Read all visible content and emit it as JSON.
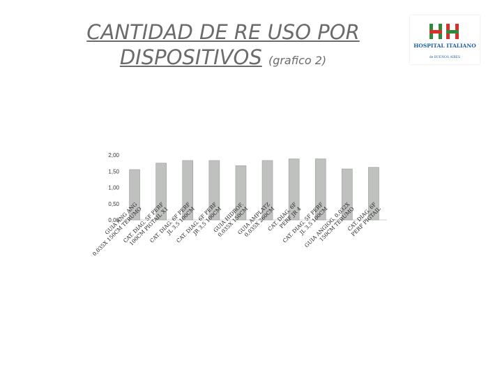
{
  "header": {
    "title_main": "CANTIDAD DE RE USO POR DISPOSITIVOS",
    "title_sub": "(grafico 2)"
  },
  "logo": {
    "name": "HOSPITAL ITALIANO",
    "tagline": "de BUENOS AIRES",
    "red": "#d9302c",
    "green": "#2f8a3c",
    "blue": "#1f5fa0"
  },
  "chart_data": {
    "type": "bar",
    "categories": [
      "GUIA ANG ANG 0,035X 150CM TERUMO",
      "CAT. DIAG. 5F PERF 100CM PIGTAIL X1",
      "CAT. DIAG. 6F PERF JL 3,5 100CM",
      "CAT. DIAG. 6F PERF JR 3,5 100CM",
      "GUIA HIDROF. 0,035X 150CM",
      "GUIA AMPLATZ 0,035X 260CM",
      "CAT. DIAG. 6F PERF JR 4",
      "CAT. DIAG. 5F PERF JL 3,5 100CM",
      "GUIA ANGIOG. 0,032X 150CM TERUMO",
      "CAT. DIAG. 6F PERF PIGTAIL"
    ],
    "values": [
      1.55,
      1.75,
      1.83,
      1.83,
      1.67,
      1.83,
      1.88,
      1.88,
      1.57,
      1.62
    ],
    "yticks": [
      "0,00",
      "0,50",
      "1,00",
      "1,50",
      "2,00"
    ],
    "ylim": [
      0,
      2
    ],
    "bar_color": "#bfc1bf",
    "bar_edge_color": "#9a9c9a"
  }
}
